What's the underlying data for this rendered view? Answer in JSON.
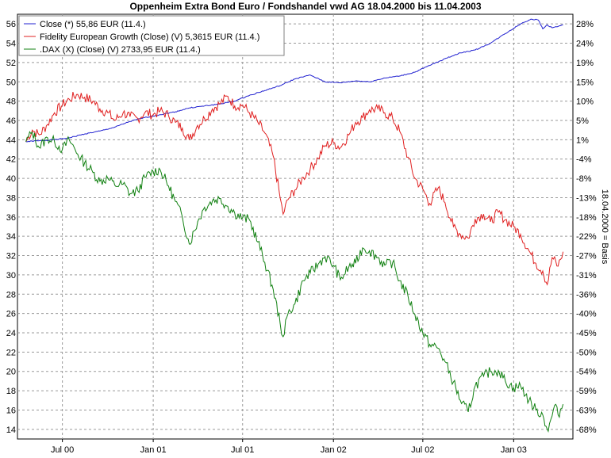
{
  "chart_data": {
    "type": "line",
    "title": "Oppenheim Extra Bond Euro / Fondshandel vwd AG 18.04.2000 bis 11.04.2003",
    "right_axis_label": "18.04.2000 = Basis",
    "left_ticks": [
      "56",
      "54",
      "52",
      "50",
      "48",
      "46",
      "44",
      "42",
      "40",
      "38",
      "36",
      "34",
      "32",
      "30",
      "28",
      "26",
      "24",
      "22",
      "20",
      "18",
      "16",
      "14"
    ],
    "right_ticks": [
      "28%",
      "24%",
      "19%",
      "15%",
      "10%",
      "5%",
      "1%",
      "-4%",
      "-8%",
      "-13%",
      "-18%",
      "-22%",
      "-27%",
      "-31%",
      "-36%",
      "-40%",
      "-45%",
      "-50%",
      "-54%",
      "-59%",
      "-63%",
      "-68%"
    ],
    "x_ticks": [
      "Jul 00",
      "Jan 01",
      "Jul 01",
      "Jan 02",
      "Jul 02",
      "Jan 03"
    ],
    "ylim": [
      13,
      57
    ],
    "grid": true,
    "legend_position": "top-left",
    "series": [
      {
        "name": "Close (*) 55,86 EUR (11.4.)",
        "color": "#2020d0",
        "points": [
          [
            "2000-04-18",
            43.8
          ],
          [
            "2000-05-15",
            43.9
          ],
          [
            "2000-06-15",
            44.0
          ],
          [
            "2000-07-15",
            44.2
          ],
          [
            "2000-08-15",
            44.6
          ],
          [
            "2000-09-15",
            44.9
          ],
          [
            "2000-10-15",
            45.3
          ],
          [
            "2000-11-15",
            45.9
          ],
          [
            "2000-12-15",
            46.3
          ],
          [
            "2001-01-15",
            46.6
          ],
          [
            "2001-02-15",
            46.9
          ],
          [
            "2001-03-15",
            47.3
          ],
          [
            "2001-04-15",
            47.5
          ],
          [
            "2001-05-15",
            47.7
          ],
          [
            "2001-06-15",
            48.0
          ],
          [
            "2001-07-15",
            48.6
          ],
          [
            "2001-08-15",
            49.1
          ],
          [
            "2001-09-15",
            49.6
          ],
          [
            "2001-10-15",
            50.3
          ],
          [
            "2001-11-15",
            50.7
          ],
          [
            "2001-12-15",
            50.0
          ],
          [
            "2002-01-15",
            49.9
          ],
          [
            "2002-02-15",
            50.1
          ],
          [
            "2002-03-15",
            50.0
          ],
          [
            "2002-04-15",
            50.4
          ],
          [
            "2002-05-15",
            50.6
          ],
          [
            "2002-06-15",
            51.0
          ],
          [
            "2002-07-15",
            51.7
          ],
          [
            "2002-08-15",
            52.4
          ],
          [
            "2002-09-15",
            53.0
          ],
          [
            "2002-10-15",
            53.3
          ],
          [
            "2002-11-15",
            54.0
          ],
          [
            "2002-12-15",
            55.0
          ],
          [
            "2003-01-15",
            56.0
          ],
          [
            "2003-02-05",
            56.5
          ],
          [
            "2003-02-20",
            56.4
          ],
          [
            "2003-03-01",
            55.5
          ],
          [
            "2003-03-10",
            55.9
          ],
          [
            "2003-03-20",
            55.6
          ],
          [
            "2003-04-11",
            55.9
          ]
        ]
      },
      {
        "name": "Fidelity European Growth (Close) (V) 5,3615 EUR (11.4.)",
        "color": "#e02020",
        "points": [
          [
            "2000-04-18",
            43.8
          ],
          [
            "2000-05-01",
            45.0
          ],
          [
            "2000-05-15",
            44.5
          ],
          [
            "2000-06-01",
            45.6
          ],
          [
            "2000-06-15",
            46.8
          ],
          [
            "2000-07-01",
            47.6
          ],
          [
            "2000-07-15",
            48.2
          ],
          [
            "2000-08-01",
            48.7
          ],
          [
            "2000-08-15",
            48.4
          ],
          [
            "2000-09-01",
            48.0
          ],
          [
            "2000-09-15",
            47.2
          ],
          [
            "2000-10-01",
            46.8
          ],
          [
            "2000-10-15",
            46.0
          ],
          [
            "2000-11-01",
            46.8
          ],
          [
            "2000-11-15",
            46.4
          ],
          [
            "2000-12-01",
            46.2
          ],
          [
            "2000-12-15",
            46.8
          ],
          [
            "2001-01-01",
            46.6
          ],
          [
            "2001-01-15",
            47.0
          ],
          [
            "2001-02-01",
            46.5
          ],
          [
            "2001-02-15",
            45.8
          ],
          [
            "2001-03-01",
            45.2
          ],
          [
            "2001-03-15",
            44.0
          ],
          [
            "2001-04-01",
            45.5
          ],
          [
            "2001-04-15",
            46.2
          ],
          [
            "2001-05-01",
            47.2
          ],
          [
            "2001-05-15",
            47.7
          ],
          [
            "2001-06-01",
            48.5
          ],
          [
            "2001-06-15",
            47.5
          ],
          [
            "2001-07-01",
            47.6
          ],
          [
            "2001-07-15",
            46.8
          ],
          [
            "2001-08-01",
            45.8
          ],
          [
            "2001-08-15",
            44.7
          ],
          [
            "2001-09-01",
            42.3
          ],
          [
            "2001-09-15",
            38.0
          ],
          [
            "2001-09-21",
            36.3
          ],
          [
            "2001-10-01",
            37.8
          ],
          [
            "2001-10-15",
            38.8
          ],
          [
            "2001-11-01",
            40.1
          ],
          [
            "2001-11-15",
            41.0
          ],
          [
            "2001-12-01",
            42.1
          ],
          [
            "2001-12-15",
            43.4
          ],
          [
            "2002-01-01",
            43.7
          ],
          [
            "2002-01-15",
            43.2
          ],
          [
            "2002-02-01",
            44.5
          ],
          [
            "2002-02-15",
            45.8
          ],
          [
            "2002-03-01",
            46.3
          ],
          [
            "2002-03-15",
            47.1
          ],
          [
            "2002-04-01",
            47.2
          ],
          [
            "2002-04-15",
            46.8
          ],
          [
            "2002-05-01",
            46.2
          ],
          [
            "2002-05-15",
            44.9
          ],
          [
            "2002-06-01",
            42.2
          ],
          [
            "2002-06-15",
            40.0
          ],
          [
            "2002-07-01",
            38.9
          ],
          [
            "2002-07-15",
            37.4
          ],
          [
            "2002-08-01",
            39.0
          ],
          [
            "2002-08-15",
            37.5
          ],
          [
            "2002-09-01",
            35.0
          ],
          [
            "2002-09-15",
            34.2
          ],
          [
            "2002-10-01",
            33.8
          ],
          [
            "2002-10-15",
            35.8
          ],
          [
            "2002-11-01",
            36.3
          ],
          [
            "2002-11-15",
            35.5
          ],
          [
            "2002-12-01",
            36.5
          ],
          [
            "2002-12-15",
            35.7
          ],
          [
            "2003-01-01",
            35.0
          ],
          [
            "2003-01-15",
            34.2
          ],
          [
            "2003-02-01",
            32.5
          ],
          [
            "2003-02-15",
            31.2
          ],
          [
            "2003-03-01",
            30.4
          ],
          [
            "2003-03-10",
            29.0
          ],
          [
            "2003-03-20",
            31.8
          ],
          [
            "2003-04-01",
            30.9
          ],
          [
            "2003-04-11",
            32.4
          ]
        ]
      },
      {
        "name": ".DAX (X) (Close) (V) 2733,95 EUR (11.4.)",
        "color": "#108010",
        "points": [
          [
            "2000-04-18",
            43.8
          ],
          [
            "2000-05-01",
            44.8
          ],
          [
            "2000-05-15",
            43.2
          ],
          [
            "2000-06-01",
            44.2
          ],
          [
            "2000-06-15",
            43.8
          ],
          [
            "2000-07-01",
            43.0
          ],
          [
            "2000-07-15",
            44.0
          ],
          [
            "2000-08-01",
            42.5
          ],
          [
            "2000-08-15",
            41.6
          ],
          [
            "2000-09-01",
            40.6
          ],
          [
            "2000-09-15",
            39.7
          ],
          [
            "2000-10-01",
            40.0
          ],
          [
            "2000-10-15",
            39.3
          ],
          [
            "2000-11-01",
            39.4
          ],
          [
            "2000-11-15",
            38.4
          ],
          [
            "2000-12-01",
            38.7
          ],
          [
            "2000-12-15",
            40.1
          ],
          [
            "2001-01-01",
            40.7
          ],
          [
            "2001-01-15",
            40.9
          ],
          [
            "2001-02-01",
            39.2
          ],
          [
            "2001-02-15",
            37.6
          ],
          [
            "2001-03-01",
            36.0
          ],
          [
            "2001-03-15",
            33.2
          ],
          [
            "2001-04-01",
            35.5
          ],
          [
            "2001-04-15",
            37.0
          ],
          [
            "2001-05-01",
            37.7
          ],
          [
            "2001-05-15",
            37.9
          ],
          [
            "2001-06-01",
            37.1
          ],
          [
            "2001-06-15",
            36.4
          ],
          [
            "2001-07-01",
            35.9
          ],
          [
            "2001-07-15",
            35.7
          ],
          [
            "2001-08-01",
            33.4
          ],
          [
            "2001-08-15",
            31.3
          ],
          [
            "2001-09-01",
            28.5
          ],
          [
            "2001-09-15",
            25.0
          ],
          [
            "2001-09-21",
            23.6
          ],
          [
            "2001-10-01",
            26.0
          ],
          [
            "2001-10-15",
            27.0
          ],
          [
            "2001-11-01",
            29.4
          ],
          [
            "2001-11-15",
            30.2
          ],
          [
            "2001-12-01",
            31.1
          ],
          [
            "2001-12-15",
            31.9
          ],
          [
            "2002-01-01",
            31.0
          ],
          [
            "2002-01-15",
            29.5
          ],
          [
            "2002-02-01",
            30.8
          ],
          [
            "2002-02-15",
            31.2
          ],
          [
            "2002-03-01",
            32.8
          ],
          [
            "2002-03-15",
            32.5
          ],
          [
            "2002-04-01",
            31.8
          ],
          [
            "2002-04-15",
            31.0
          ],
          [
            "2002-05-01",
            31.3
          ],
          [
            "2002-05-15",
            29.4
          ],
          [
            "2002-06-01",
            27.8
          ],
          [
            "2002-06-15",
            25.9
          ],
          [
            "2002-07-01",
            24.0
          ],
          [
            "2002-07-15",
            22.8
          ],
          [
            "2002-08-01",
            22.4
          ],
          [
            "2002-08-15",
            21.0
          ],
          [
            "2002-09-01",
            18.9
          ],
          [
            "2002-09-15",
            17.0
          ],
          [
            "2002-10-01",
            15.8
          ],
          [
            "2002-10-15",
            18.5
          ],
          [
            "2002-11-01",
            19.5
          ],
          [
            "2002-11-15",
            20.0
          ],
          [
            "2002-12-01",
            20.1
          ],
          [
            "2002-12-15",
            19.0
          ],
          [
            "2003-01-01",
            18.3
          ],
          [
            "2003-01-15",
            18.5
          ],
          [
            "2003-02-01",
            17.0
          ],
          [
            "2003-02-15",
            16.0
          ],
          [
            "2003-03-01",
            15.5
          ],
          [
            "2003-03-12",
            13.8
          ],
          [
            "2003-03-25",
            16.5
          ],
          [
            "2003-04-01",
            15.5
          ],
          [
            "2003-04-11",
            16.6
          ]
        ]
      }
    ]
  }
}
